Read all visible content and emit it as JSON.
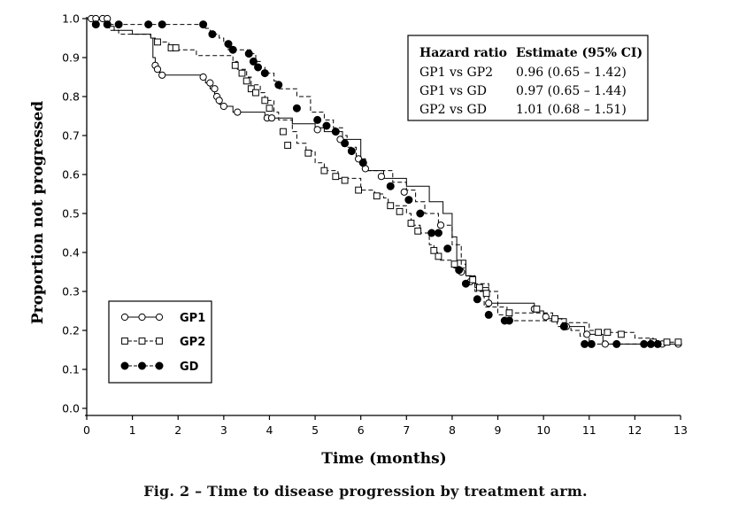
{
  "caption": "Fig. 2 – Time to disease progression by treatment arm.",
  "chart_data": {
    "type": "line",
    "subtype": "kaplan-meier step curves",
    "xlabel": "Time (months)",
    "ylabel": "Proportion not progressed",
    "xlim": [
      0,
      13
    ],
    "ylim": [
      0,
      1.0
    ],
    "x_ticks": [
      0,
      1,
      2,
      3,
      4,
      5,
      6,
      7,
      8,
      9,
      10,
      11,
      12,
      13
    ],
    "y_ticks": [
      0.0,
      0.1,
      0.2,
      0.3,
      0.4,
      0.5,
      0.6,
      0.7,
      0.8,
      0.9,
      1.0
    ],
    "y_tick_labels": [
      "0.0",
      "0.1",
      "0.2",
      "0.3",
      "0.4",
      "0.5",
      "0.6",
      "0.7",
      "0.8",
      "0.9",
      "1.0"
    ],
    "grid": false,
    "legend_position": "bottom-left",
    "series": [
      {
        "name": "GP1",
        "marker": "open-circle",
        "line": "solid",
        "color": "#000000",
        "steps": [
          [
            0,
            1.0
          ],
          [
            0.5,
            0.98
          ],
          [
            0.6,
            0.97
          ],
          [
            1.0,
            0.96
          ],
          [
            1.4,
            0.95
          ],
          [
            1.45,
            0.9
          ],
          [
            1.5,
            0.88
          ],
          [
            1.55,
            0.87
          ],
          [
            1.6,
            0.855
          ],
          [
            2.6,
            0.835
          ],
          [
            2.7,
            0.82
          ],
          [
            2.8,
            0.8
          ],
          [
            2.85,
            0.79
          ],
          [
            2.9,
            0.78
          ],
          [
            3.0,
            0.775
          ],
          [
            3.2,
            0.76
          ],
          [
            3.9,
            0.75
          ],
          [
            4.0,
            0.745
          ],
          [
            4.5,
            0.73
          ],
          [
            5.0,
            0.72
          ],
          [
            5.2,
            0.71
          ],
          [
            5.6,
            0.69
          ],
          [
            6.0,
            0.64
          ],
          [
            6.1,
            0.61
          ],
          [
            6.5,
            0.59
          ],
          [
            7.0,
            0.57
          ],
          [
            7.5,
            0.53
          ],
          [
            7.8,
            0.5
          ],
          [
            8.0,
            0.44
          ],
          [
            8.1,
            0.38
          ],
          [
            8.3,
            0.34
          ],
          [
            8.5,
            0.31
          ],
          [
            8.8,
            0.27
          ],
          [
            9.8,
            0.25
          ],
          [
            10.0,
            0.23
          ],
          [
            10.5,
            0.21
          ],
          [
            10.9,
            0.19
          ],
          [
            11.3,
            0.165
          ],
          [
            13.0,
            0.165
          ]
        ],
        "censors": [
          [
            0.1,
            1.0
          ],
          [
            0.2,
            1.0
          ],
          [
            0.35,
            1.0
          ],
          [
            0.45,
            1.0
          ],
          [
            1.5,
            0.88
          ],
          [
            1.55,
            0.87
          ],
          [
            1.65,
            0.855
          ],
          [
            2.55,
            0.85
          ],
          [
            2.7,
            0.835
          ],
          [
            2.8,
            0.82
          ],
          [
            2.85,
            0.8
          ],
          [
            2.9,
            0.79
          ],
          [
            3.0,
            0.775
          ],
          [
            3.3,
            0.76
          ],
          [
            3.95,
            0.745
          ],
          [
            4.05,
            0.745
          ],
          [
            5.05,
            0.715
          ],
          [
            5.55,
            0.69
          ],
          [
            5.95,
            0.64
          ],
          [
            6.1,
            0.615
          ],
          [
            6.45,
            0.595
          ],
          [
            6.95,
            0.555
          ],
          [
            7.75,
            0.47
          ],
          [
            8.2,
            0.35
          ],
          [
            8.4,
            0.325
          ],
          [
            8.8,
            0.27
          ],
          [
            9.8,
            0.255
          ],
          [
            10.05,
            0.235
          ],
          [
            10.5,
            0.21
          ],
          [
            10.95,
            0.19
          ],
          [
            11.35,
            0.165
          ],
          [
            12.35,
            0.165
          ],
          [
            12.6,
            0.165
          ],
          [
            12.95,
            0.165
          ]
        ]
      },
      {
        "name": "GP2",
        "marker": "open-square",
        "line": "dashed",
        "color": "#000000",
        "steps": [
          [
            0,
            1.0
          ],
          [
            0.45,
            0.985
          ],
          [
            0.5,
            0.97
          ],
          [
            0.7,
            0.96
          ],
          [
            1.4,
            0.95
          ],
          [
            1.5,
            0.94
          ],
          [
            1.8,
            0.92
          ],
          [
            2.4,
            0.905
          ],
          [
            3.2,
            0.89
          ],
          [
            3.3,
            0.87
          ],
          [
            3.5,
            0.85
          ],
          [
            3.6,
            0.83
          ],
          [
            3.8,
            0.81
          ],
          [
            3.9,
            0.79
          ],
          [
            4.1,
            0.76
          ],
          [
            4.2,
            0.74
          ],
          [
            4.5,
            0.71
          ],
          [
            4.6,
            0.68
          ],
          [
            4.8,
            0.66
          ],
          [
            5.0,
            0.63
          ],
          [
            5.2,
            0.61
          ],
          [
            5.5,
            0.59
          ],
          [
            6.0,
            0.56
          ],
          [
            6.3,
            0.55
          ],
          [
            6.5,
            0.54
          ],
          [
            6.6,
            0.52
          ],
          [
            7.0,
            0.5
          ],
          [
            7.1,
            0.47
          ],
          [
            7.3,
            0.45
          ],
          [
            7.5,
            0.42
          ],
          [
            7.6,
            0.4
          ],
          [
            7.7,
            0.38
          ],
          [
            8.0,
            0.36
          ],
          [
            8.3,
            0.34
          ],
          [
            8.5,
            0.32
          ],
          [
            8.8,
            0.3
          ],
          [
            9.0,
            0.26
          ],
          [
            9.2,
            0.245
          ],
          [
            10.2,
            0.23
          ],
          [
            10.4,
            0.22
          ],
          [
            11.0,
            0.2
          ],
          [
            11.4,
            0.195
          ],
          [
            12.0,
            0.18
          ],
          [
            12.4,
            0.17
          ],
          [
            13.0,
            0.17
          ]
        ],
        "censors": [
          [
            1.55,
            0.94
          ],
          [
            1.85,
            0.925
          ],
          [
            1.95,
            0.925
          ],
          [
            3.25,
            0.88
          ],
          [
            3.4,
            0.86
          ],
          [
            3.5,
            0.84
          ],
          [
            3.6,
            0.82
          ],
          [
            3.7,
            0.81
          ],
          [
            3.9,
            0.79
          ],
          [
            4.0,
            0.77
          ],
          [
            4.3,
            0.71
          ],
          [
            4.4,
            0.675
          ],
          [
            4.85,
            0.655
          ],
          [
            5.2,
            0.61
          ],
          [
            5.45,
            0.595
          ],
          [
            5.65,
            0.585
          ],
          [
            5.95,
            0.56
          ],
          [
            6.35,
            0.545
          ],
          [
            6.65,
            0.52
          ],
          [
            6.85,
            0.505
          ],
          [
            7.1,
            0.475
          ],
          [
            7.25,
            0.455
          ],
          [
            7.6,
            0.405
          ],
          [
            7.7,
            0.39
          ],
          [
            8.05,
            0.37
          ],
          [
            8.45,
            0.33
          ],
          [
            8.6,
            0.31
          ],
          [
            8.75,
            0.295
          ],
          [
            9.25,
            0.245
          ],
          [
            9.85,
            0.255
          ],
          [
            10.25,
            0.23
          ],
          [
            11.2,
            0.195
          ],
          [
            11.4,
            0.195
          ],
          [
            11.7,
            0.19
          ],
          [
            12.4,
            0.17
          ],
          [
            12.7,
            0.17
          ],
          [
            12.95,
            0.17
          ]
        ]
      },
      {
        "name": "GD",
        "marker": "filled-circle",
        "line": "dashed",
        "color": "#000000",
        "steps": [
          [
            0,
            1.0
          ],
          [
            0.5,
            0.985
          ],
          [
            2.6,
            0.975
          ],
          [
            2.7,
            0.96
          ],
          [
            2.9,
            0.95
          ],
          [
            3.0,
            0.935
          ],
          [
            3.1,
            0.92
          ],
          [
            3.6,
            0.91
          ],
          [
            3.7,
            0.89
          ],
          [
            3.8,
            0.875
          ],
          [
            3.9,
            0.86
          ],
          [
            4.1,
            0.84
          ],
          [
            4.2,
            0.82
          ],
          [
            4.6,
            0.8
          ],
          [
            4.9,
            0.76
          ],
          [
            5.2,
            0.74
          ],
          [
            5.4,
            0.72
          ],
          [
            5.6,
            0.7
          ],
          [
            5.7,
            0.67
          ],
          [
            5.9,
            0.64
          ],
          [
            6.1,
            0.61
          ],
          [
            6.7,
            0.58
          ],
          [
            7.0,
            0.56
          ],
          [
            7.2,
            0.53
          ],
          [
            7.4,
            0.5
          ],
          [
            7.7,
            0.47
          ],
          [
            8.0,
            0.42
          ],
          [
            8.2,
            0.37
          ],
          [
            8.3,
            0.34
          ],
          [
            8.5,
            0.3
          ],
          [
            8.7,
            0.26
          ],
          [
            9.0,
            0.24
          ],
          [
            9.3,
            0.225
          ],
          [
            10.3,
            0.21
          ],
          [
            10.6,
            0.2
          ],
          [
            10.8,
            0.185
          ],
          [
            11.0,
            0.165
          ],
          [
            12.5,
            0.165
          ]
        ],
        "censors": [
          [
            0.2,
            0.985
          ],
          [
            0.45,
            0.985
          ],
          [
            0.7,
            0.985
          ],
          [
            1.35,
            0.985
          ],
          [
            1.65,
            0.985
          ],
          [
            2.55,
            0.985
          ],
          [
            2.75,
            0.96
          ],
          [
            3.1,
            0.935
          ],
          [
            3.2,
            0.92
          ],
          [
            3.55,
            0.91
          ],
          [
            3.65,
            0.89
          ],
          [
            3.75,
            0.875
          ],
          [
            3.9,
            0.86
          ],
          [
            4.2,
            0.83
          ],
          [
            4.6,
            0.77
          ],
          [
            5.05,
            0.74
          ],
          [
            5.25,
            0.725
          ],
          [
            5.45,
            0.71
          ],
          [
            5.65,
            0.68
          ],
          [
            5.8,
            0.66
          ],
          [
            6.05,
            0.63
          ],
          [
            6.65,
            0.57
          ],
          [
            7.05,
            0.535
          ],
          [
            7.3,
            0.5
          ],
          [
            7.55,
            0.45
          ],
          [
            7.7,
            0.45
          ],
          [
            7.9,
            0.41
          ],
          [
            8.15,
            0.355
          ],
          [
            8.3,
            0.32
          ],
          [
            8.55,
            0.28
          ],
          [
            8.8,
            0.24
          ],
          [
            9.15,
            0.225
          ],
          [
            9.25,
            0.225
          ],
          [
            10.45,
            0.21
          ],
          [
            10.9,
            0.165
          ],
          [
            11.05,
            0.165
          ],
          [
            11.6,
            0.165
          ],
          [
            12.2,
            0.165
          ],
          [
            12.35,
            0.165
          ],
          [
            12.5,
            0.165
          ]
        ]
      }
    ],
    "legend": [
      {
        "label": "GP1",
        "marker": "open-circle",
        "line": "solid"
      },
      {
        "label": "GP2",
        "marker": "open-square",
        "line": "dashed"
      },
      {
        "label": "GD",
        "marker": "filled-circle",
        "line": "dashed"
      }
    ],
    "annotation_table": {
      "headers": [
        "Hazard ratio",
        "Estimate (95% CI)"
      ],
      "rows": [
        [
          "GP1 vs GP2",
          "0.96 (0.65 – 1.42)"
        ],
        [
          "GP1 vs GD",
          "0.97 (0.65 – 1.44)"
        ],
        [
          "GP2 vs GD",
          "1.01 (0.68 – 1.51)"
        ]
      ],
      "position": "top-right"
    }
  }
}
